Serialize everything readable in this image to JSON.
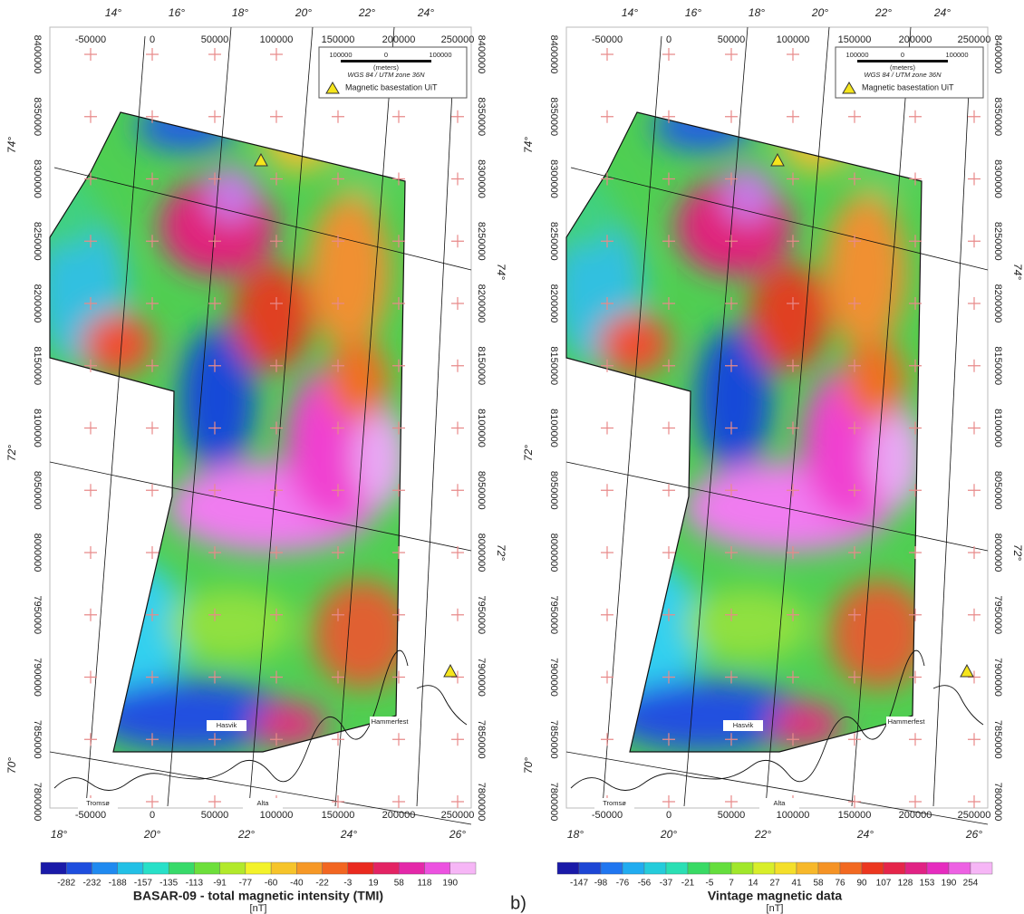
{
  "panels": [
    {
      "top_degrees": [
        "14°",
        "16°",
        "18°",
        "20°",
        "22°",
        "24°"
      ],
      "x_labels": [
        "-50000",
        "0",
        "50000",
        "100000",
        "150000",
        "200000",
        "250000"
      ],
      "y_labels": [
        "8400000",
        "8350000",
        "8300000",
        "8250000",
        "8200000",
        "8150000",
        "8100000",
        "8050000",
        "8000000",
        "7950000",
        "7900000",
        "7850000",
        "7800000"
      ],
      "left_latitudes": [
        "74°",
        "72°",
        "70°"
      ],
      "right_latitudes": [
        "74°",
        "72°"
      ],
      "bottom_degrees": [
        "18°",
        "20°",
        "22°",
        "24°",
        "26°"
      ],
      "legend": {
        "scale_labels": [
          "100000",
          "0",
          "100000"
        ],
        "scale_unit": "(meters)",
        "projection": "WGS 84 / UTM zone 36N",
        "basestation": "Magnetic basestation UiT"
      },
      "places": [
        "Hasvik",
        "Hammerfest",
        "Tromsø",
        "Alta"
      ],
      "colorbar": {
        "labels": [
          "-282",
          "-232",
          "-188",
          "-157",
          "-135",
          "-113",
          "-91",
          "-77",
          "-60",
          "-40",
          "-22",
          "-3",
          "19",
          "58",
          "118",
          "190"
        ],
        "unit": "[nT]"
      },
      "title": "BASAR-09 - total magnetic intensity (TMI)"
    },
    {
      "top_degrees": [
        "14°",
        "16°",
        "18°",
        "20°",
        "22°",
        "24°"
      ],
      "x_labels": [
        "-50000",
        "0",
        "50000",
        "100000",
        "150000",
        "200000",
        "250000"
      ],
      "y_labels": [
        "8400000",
        "8350000",
        "8300000",
        "8250000",
        "8200000",
        "8150000",
        "8100000",
        "8050000",
        "8000000",
        "7950000",
        "7900000",
        "7850000",
        "7800000"
      ],
      "left_latitudes": [
        "74°",
        "72°",
        "70°"
      ],
      "right_latitudes": [
        "74°",
        "72°"
      ],
      "bottom_degrees": [
        "18°",
        "20°",
        "22°",
        "24°",
        "26°"
      ],
      "legend": {
        "scale_labels": [
          "100000",
          "0",
          "100000"
        ],
        "scale_unit": "(meters)",
        "projection": "WGS 84 / UTM zone 36N",
        "basestation": "Magnetic basestation UiT"
      },
      "places": [
        "Hasvik",
        "Hammerfest",
        "Tromsø",
        "Alta"
      ],
      "colorbar": {
        "labels": [
          "-147",
          "-98",
          "-76",
          "-56",
          "-37",
          "-21",
          "-5",
          "7",
          "14",
          "27",
          "41",
          "58",
          "76",
          "90",
          "107",
          "128",
          "153",
          "190",
          "254"
        ],
        "unit": "[nT]"
      },
      "title": "Vintage magnetic data"
    }
  ],
  "figure_label": "b)"
}
